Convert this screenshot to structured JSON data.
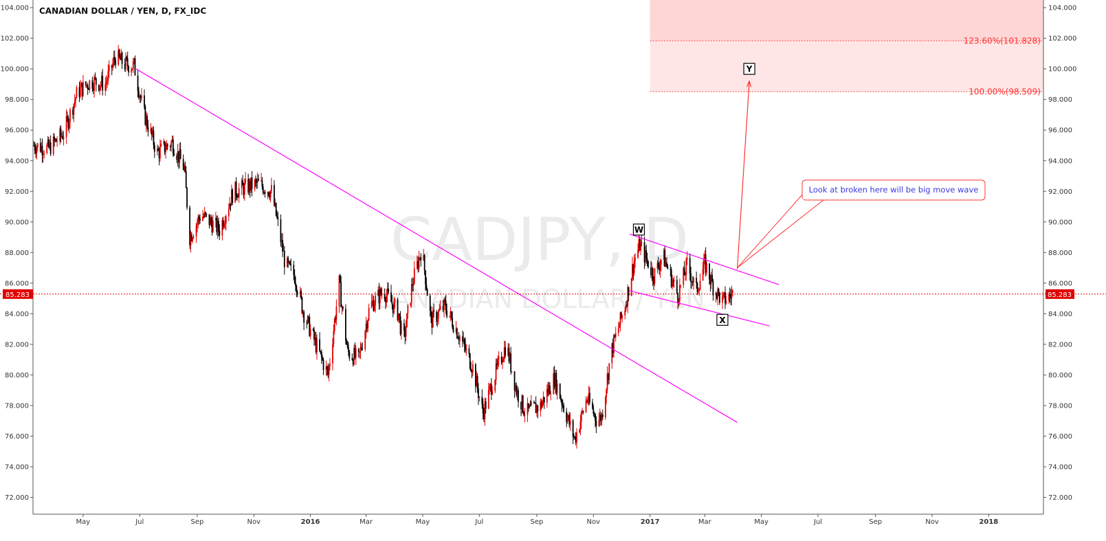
{
  "chart_data": {
    "type": "candlestick",
    "title": "CANADIAN DOLLAR / YEN, D, FX_IDC",
    "watermark": {
      "symbol": "CADJPY, D",
      "name": "CANADIAN DOLLAR / YEN"
    },
    "y_ticks": [
      "104.000",
      "102.000",
      "100.000",
      "98.000",
      "96.000",
      "94.000",
      "92.000",
      "90.000",
      "88.000",
      "86.000",
      "84.000",
      "82.000",
      "80.000",
      "78.000",
      "76.000",
      "74.000",
      "72.000"
    ],
    "ylim": [
      70.9,
      104.5
    ],
    "x_ticks": [
      {
        "label": "May",
        "date": "2015-05-01",
        "bold": false
      },
      {
        "label": "Jul",
        "date": "2015-07-01",
        "bold": false
      },
      {
        "label": "Sep",
        "date": "2015-09-01",
        "bold": false
      },
      {
        "label": "Nov",
        "date": "2015-11-01",
        "bold": false
      },
      {
        "label": "2016",
        "date": "2016-01-01",
        "bold": true
      },
      {
        "label": "Mar",
        "date": "2016-03-01",
        "bold": false
      },
      {
        "label": "May",
        "date": "2016-05-01",
        "bold": false
      },
      {
        "label": "Jul",
        "date": "2016-07-01",
        "bold": false
      },
      {
        "label": "Sep",
        "date": "2016-09-01",
        "bold": false
      },
      {
        "label": "Nov",
        "date": "2016-11-01",
        "bold": false
      },
      {
        "label": "2017",
        "date": "2017-01-01",
        "bold": true
      },
      {
        "label": "Mar",
        "date": "2017-03-01",
        "bold": false
      },
      {
        "label": "May",
        "date": "2017-05-01",
        "bold": false
      },
      {
        "label": "Jul",
        "date": "2017-07-01",
        "bold": false
      },
      {
        "label": "Sep",
        "date": "2017-09-01",
        "bold": false
      },
      {
        "label": "Nov",
        "date": "2017-11-01",
        "bold": false
      },
      {
        "label": "2018",
        "date": "2018-01-01",
        "bold": true
      }
    ],
    "xlim": [
      "2015-03-08",
      "2018-03-01"
    ],
    "colors": {
      "up": "#e00000",
      "down": "#000000",
      "trend": "#ff00ff",
      "fib": "#ff4444",
      "price_line": "#e00000"
    },
    "last_price": {
      "label": "85.283",
      "value": 85.283
    },
    "price_path": [
      {
        "date": "2015-03-09",
        "close": 95.0
      },
      {
        "date": "2015-03-25",
        "close": 94.8
      },
      {
        "date": "2015-04-10",
        "close": 95.8
      },
      {
        "date": "2015-04-25",
        "close": 98.5
      },
      {
        "date": "2015-05-10",
        "close": 99.2
      },
      {
        "date": "2015-05-25",
        "close": 99.0
      },
      {
        "date": "2015-06-05",
        "close": 100.8
      },
      {
        "date": "2015-06-15",
        "close": 100.3
      },
      {
        "date": "2015-06-25",
        "close": 100.2
      },
      {
        "date": "2015-07-05",
        "close": 97.2
      },
      {
        "date": "2015-07-20",
        "close": 94.5
      },
      {
        "date": "2015-08-05",
        "close": 95.2
      },
      {
        "date": "2015-08-18",
        "close": 93.5
      },
      {
        "date": "2015-08-24",
        "close": 89.0
      },
      {
        "date": "2015-09-05",
        "close": 90.5
      },
      {
        "date": "2015-09-25",
        "close": 89.5
      },
      {
        "date": "2015-10-10",
        "close": 92.0
      },
      {
        "date": "2015-11-05",
        "close": 92.5
      },
      {
        "date": "2015-11-20",
        "close": 92.0
      },
      {
        "date": "2015-11-28",
        "close": 89.5
      },
      {
        "date": "2015-12-05",
        "close": 87.2
      },
      {
        "date": "2015-12-15",
        "close": 86.5
      },
      {
        "date": "2015-12-25",
        "close": 84.0
      },
      {
        "date": "2016-01-10",
        "close": 81.5
      },
      {
        "date": "2016-01-20",
        "close": 80.0
      },
      {
        "date": "2016-02-01",
        "close": 86.0
      },
      {
        "date": "2016-02-10",
        "close": 81.5
      },
      {
        "date": "2016-02-22",
        "close": 81.0
      },
      {
        "date": "2016-03-05",
        "close": 84.5
      },
      {
        "date": "2016-03-20",
        "close": 85.5
      },
      {
        "date": "2016-04-05",
        "close": 84.0
      },
      {
        "date": "2016-04-10",
        "close": 82.0
      },
      {
        "date": "2016-04-20",
        "close": 86.0
      },
      {
        "date": "2016-04-30",
        "close": 88.3
      },
      {
        "date": "2016-05-10",
        "close": 83.5
      },
      {
        "date": "2016-05-25",
        "close": 84.5
      },
      {
        "date": "2016-06-10",
        "close": 82.5
      },
      {
        "date": "2016-06-24",
        "close": 80.5
      },
      {
        "date": "2016-07-05",
        "close": 77.5
      },
      {
        "date": "2016-07-15",
        "close": 79.5
      },
      {
        "date": "2016-07-30",
        "close": 82.0
      },
      {
        "date": "2016-08-10",
        "close": 79.0
      },
      {
        "date": "2016-08-20",
        "close": 77.5
      },
      {
        "date": "2016-09-05",
        "close": 78.0
      },
      {
        "date": "2016-09-20",
        "close": 79.8
      },
      {
        "date": "2016-10-05",
        "close": 77.0
      },
      {
        "date": "2016-10-12",
        "close": 75.8
      },
      {
        "date": "2016-10-25",
        "close": 78.5
      },
      {
        "date": "2016-11-05",
        "close": 77.0
      },
      {
        "date": "2016-11-10",
        "close": 77.3
      },
      {
        "date": "2016-11-20",
        "close": 81.5
      },
      {
        "date": "2016-12-05",
        "close": 84.5
      },
      {
        "date": "2016-12-15",
        "close": 87.5
      },
      {
        "date": "2016-12-21",
        "close": 88.5
      },
      {
        "date": "2017-01-05",
        "close": 86.5
      },
      {
        "date": "2017-01-15",
        "close": 87.8
      },
      {
        "date": "2017-01-31",
        "close": 85.2
      },
      {
        "date": "2017-02-10",
        "close": 87.2
      },
      {
        "date": "2017-02-20",
        "close": 85.5
      },
      {
        "date": "2017-03-01",
        "close": 87.3
      },
      {
        "date": "2017-03-10",
        "close": 85.8
      },
      {
        "date": "2017-03-20",
        "close": 84.8
      },
      {
        "date": "2017-03-31",
        "close": 85.283
      }
    ],
    "trendlines": [
      {
        "from": {
          "date": "2015-06-27",
          "value": 100.0
        },
        "to": {
          "date": "2017-04-05",
          "value": 76.9
        }
      },
      {
        "from": {
          "date": "2016-12-10",
          "value": 89.2
        },
        "to": {
          "date": "2017-05-20",
          "value": 85.9
        }
      },
      {
        "from": {
          "date": "2016-12-10",
          "value": 85.5
        },
        "to": {
          "date": "2017-05-10",
          "value": 83.2
        }
      }
    ],
    "fib_levels": [
      {
        "label": "123.60%(101.828)",
        "value": 101.828
      },
      {
        "label": "100.00%(98.509)",
        "value": 98.509
      }
    ],
    "target_zone": {
      "from_date": "2017-01-01",
      "top": 104.5,
      "mid": 101.828,
      "bottom": 98.509
    },
    "wave_labels": [
      {
        "label": "W",
        "date": "2016-12-20",
        "value": 89.5
      },
      {
        "label": "X",
        "date": "2017-03-20",
        "value": 83.6
      },
      {
        "label": "Y",
        "date": "2017-04-18",
        "value": 100.0
      }
    ],
    "projection_arrow": {
      "from": {
        "date": "2017-04-05",
        "value": 86.9
      },
      "to": {
        "date": "2017-04-18",
        "value": 99.2
      }
    },
    "annotation": {
      "text": "Look at broken here will be big move wave",
      "pointer": {
        "date": "2017-04-05",
        "value": 87.0
      }
    }
  }
}
